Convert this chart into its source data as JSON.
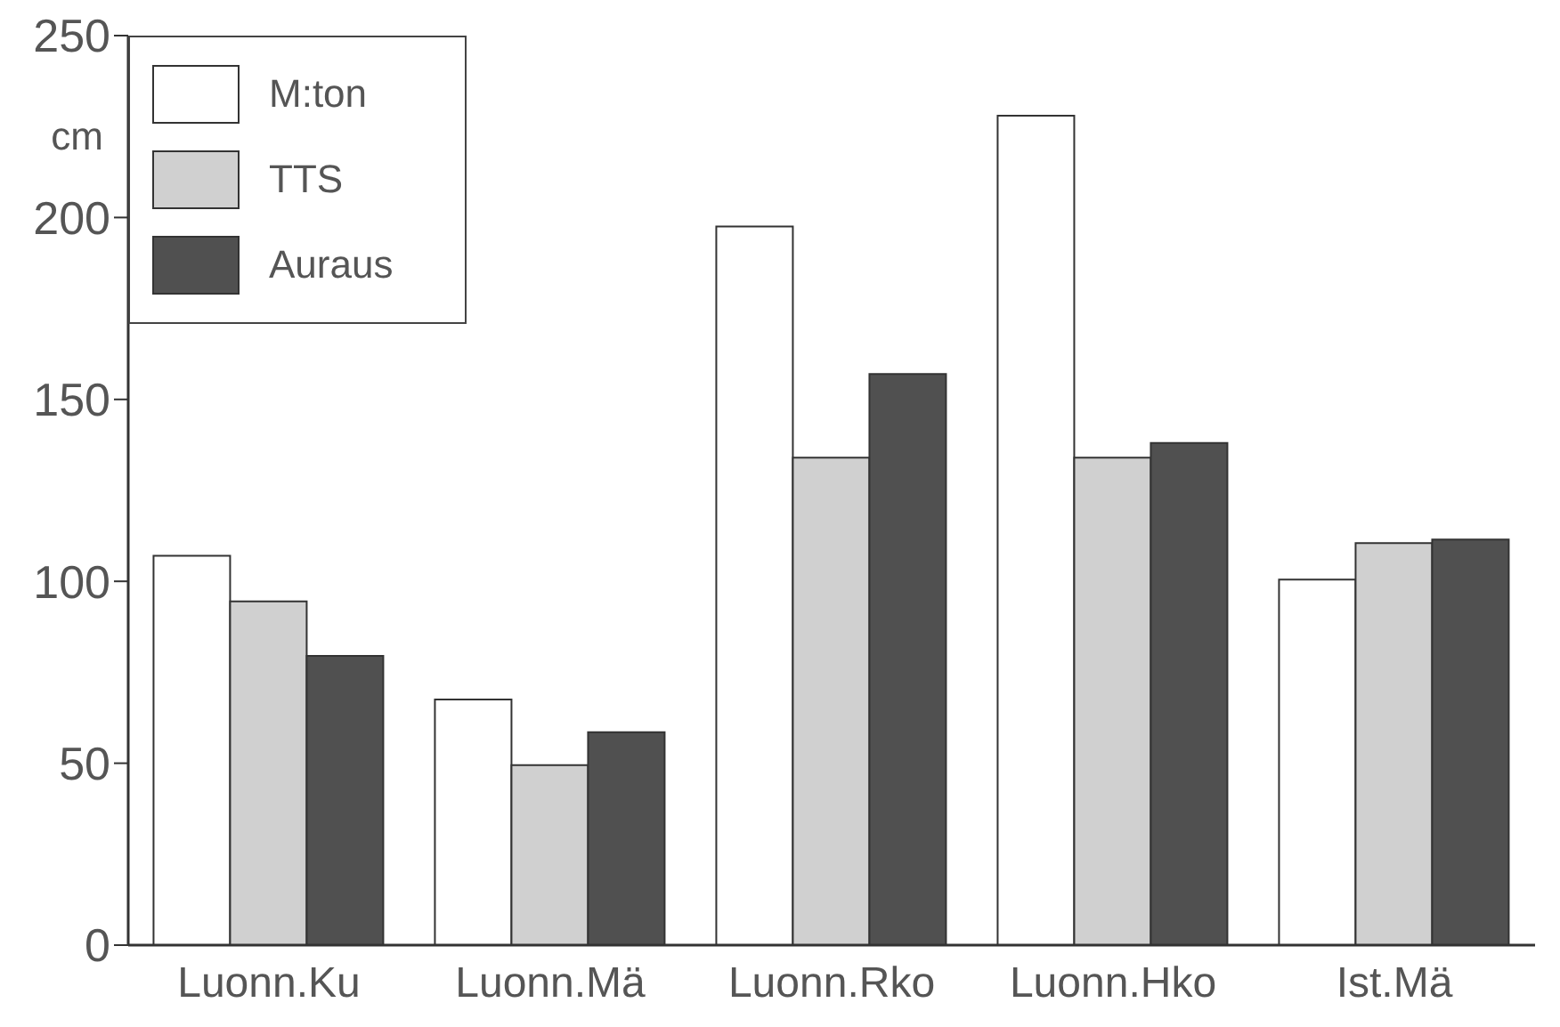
{
  "chart_data": {
    "type": "bar",
    "ylabel": "cm",
    "categories": [
      "Luonn.Ku",
      "Luonn.Mä",
      "Luonn.Rko",
      "Luonn.Hko",
      "Ist.Mä"
    ],
    "series": [
      {
        "name": "M:ton",
        "color": "#ffffff",
        "values": [
          107,
          67.5,
          197.5,
          228,
          100.5
        ]
      },
      {
        "name": "TTS",
        "color": "#d0d0d0",
        "values": [
          94.5,
          49.5,
          134,
          134,
          110.5
        ]
      },
      {
        "name": "Auraus",
        "color": "#505050",
        "values": [
          79.5,
          58.5,
          157,
          138,
          111.5
        ]
      }
    ],
    "ylim": [
      0,
      250
    ],
    "yticks": [
      0,
      50,
      100,
      150,
      200,
      250
    ],
    "grid": false,
    "legend": "top left"
  }
}
